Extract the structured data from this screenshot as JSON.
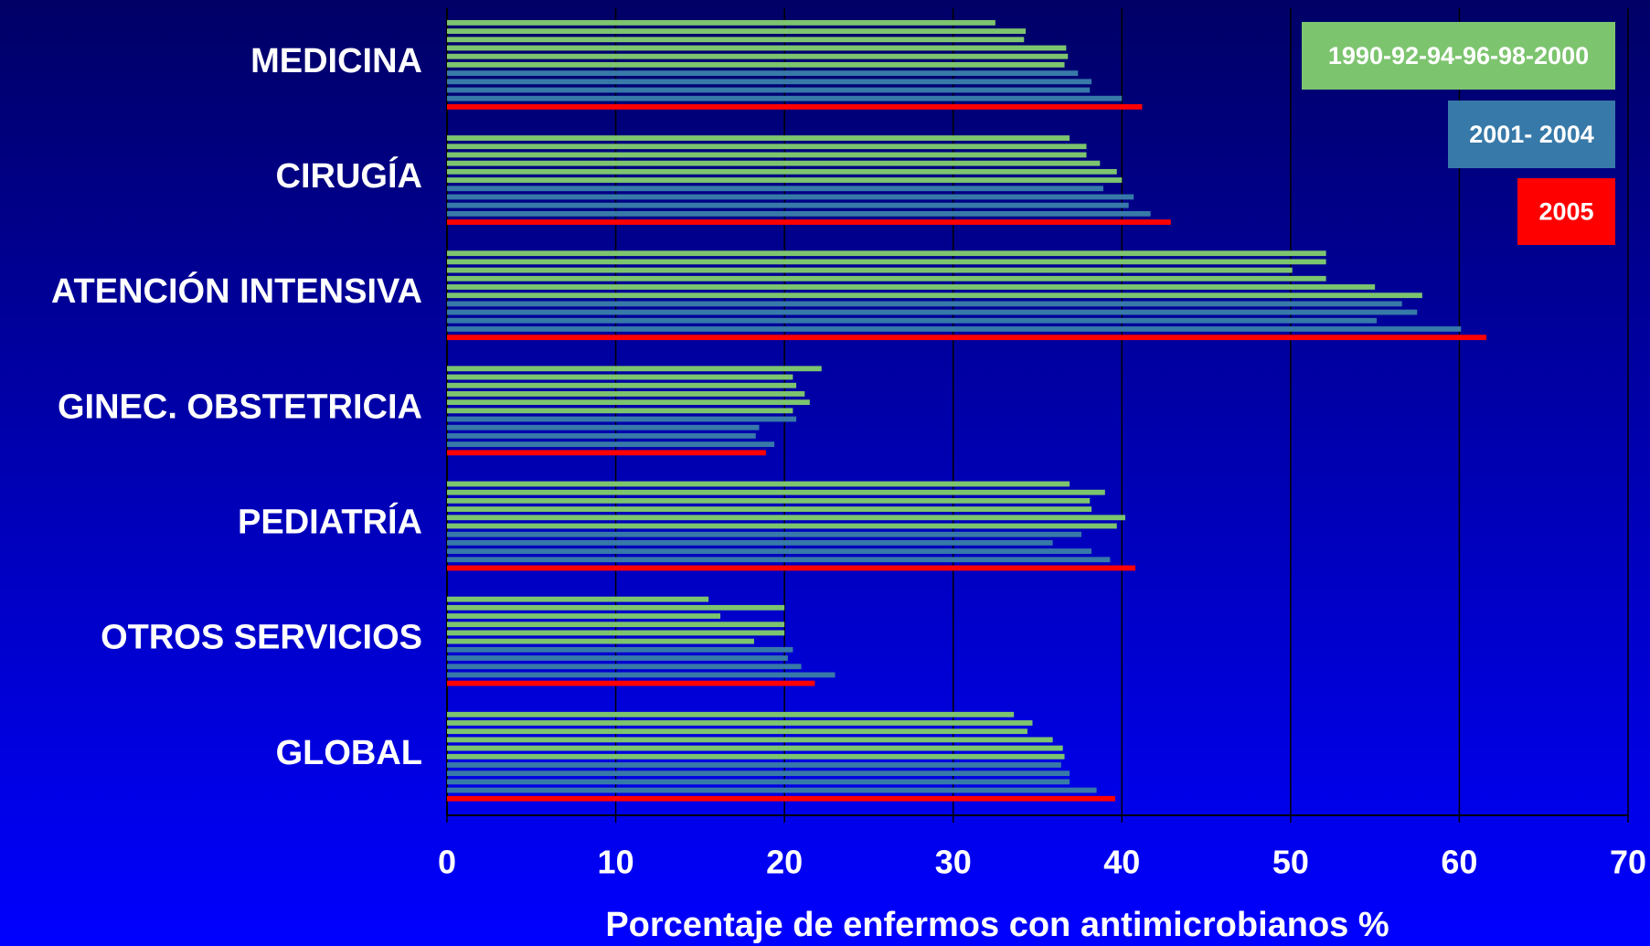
{
  "chart_data": {
    "type": "bar",
    "orientation": "horizontal",
    "x_label": "Porcentaje de enfermos con antimicrobianos %",
    "categories": [
      "MEDICINA",
      "CIRUGÍA",
      "ATENCIÓN INTENSIVA",
      "GINEC. OBSTETRICIA",
      "PEDIATRÍA",
      "OTROS SERVICIOS",
      "GLOBAL"
    ],
    "series": [
      {
        "name": "1990-92-94-96-98-2000",
        "color": "#7dc46f",
        "values": [
          [
            32.5,
            34.3,
            34.2,
            36.7,
            36.8,
            36.6
          ],
          [
            36.9,
            37.9,
            37.9,
            38.7,
            39.7,
            40.0
          ],
          [
            52.1,
            52.1,
            50.1,
            52.1,
            55.0,
            57.8
          ],
          [
            22.2,
            20.5,
            20.7,
            21.2,
            21.5,
            20.5
          ],
          [
            36.9,
            39.0,
            38.1,
            38.2,
            40.2,
            39.7
          ],
          [
            15.5,
            20.0,
            16.2,
            20.0,
            20.0,
            18.2
          ],
          [
            33.6,
            34.7,
            34.4,
            35.9,
            36.5,
            36.6
          ]
        ]
      },
      {
        "name": "2001- 2004",
        "color": "#3779a8",
        "values": [
          [
            37.4,
            38.2,
            38.1,
            40.0
          ],
          [
            38.9,
            40.7,
            40.4,
            41.7
          ],
          [
            56.6,
            57.5,
            55.1,
            60.1
          ],
          [
            20.7,
            18.5,
            18.3,
            19.4
          ],
          [
            37.6,
            35.9,
            38.2,
            39.3
          ],
          [
            20.5,
            20.2,
            21.0,
            23.0
          ],
          [
            36.4,
            36.9,
            36.9,
            38.5
          ]
        ]
      },
      {
        "name": "2005",
        "color": "#ff0000",
        "values": [
          [
            41.2
          ],
          [
            42.9
          ],
          [
            61.6
          ],
          [
            18.9
          ],
          [
            40.8
          ],
          [
            21.8
          ],
          [
            39.6
          ]
        ]
      }
    ],
    "xlim": [
      0,
      70
    ],
    "xticks": [
      0,
      10,
      20,
      30,
      40,
      50,
      60,
      70
    ],
    "grid": true,
    "legend": "top-right"
  }
}
